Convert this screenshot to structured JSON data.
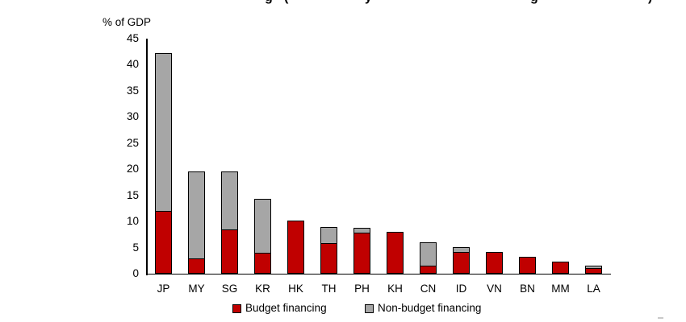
{
  "title_fragments": [
    "g",
    "(",
    "y",
    "g",
    ")"
  ],
  "axis": {
    "unit_label": "% of GDP"
  },
  "chart_data": {
    "type": "bar",
    "stacked": true,
    "title_visible_only_as_clipped_descenders": "g ( y g )",
    "categories": [
      "JP",
      "MY",
      "SG",
      "KR",
      "HK",
      "TH",
      "PH",
      "KH",
      "CN",
      "ID",
      "VN",
      "BN",
      "MM",
      "LA"
    ],
    "series": [
      {
        "name": "Budget financing",
        "color": "#C00000",
        "values": [
          12.0,
          3.0,
          8.4,
          4.0,
          10.1,
          5.8,
          7.8,
          8.0,
          1.6,
          4.2,
          4.2,
          3.2,
          2.3,
          1.1
        ]
      },
      {
        "name": "Non-budget financing",
        "color": "#A6A6A6",
        "values": [
          30.2,
          16.5,
          11.1,
          10.3,
          0,
          3.1,
          1.0,
          0,
          4.4,
          0.9,
          0,
          0,
          0,
          0.5
        ]
      }
    ],
    "totals": [
      42.2,
      19.5,
      19.5,
      14.3,
      10.1,
      8.9,
      8.8,
      8.0,
      6.0,
      5.1,
      4.2,
      3.2,
      2.3,
      1.6
    ],
    "xlabel": "",
    "ylabel": "% of GDP",
    "ylim": [
      0,
      45
    ],
    "yticks": [
      0,
      5,
      10,
      15,
      20,
      25,
      30,
      35,
      40,
      45
    ],
    "grid": false,
    "legend_position": "bottom",
    "outline_color": "#000000"
  },
  "legend": {
    "items": [
      {
        "label": "Budget financing",
        "color": "#C00000"
      },
      {
        "label": "Non-budget financing",
        "color": "#A6A6A6"
      }
    ]
  }
}
